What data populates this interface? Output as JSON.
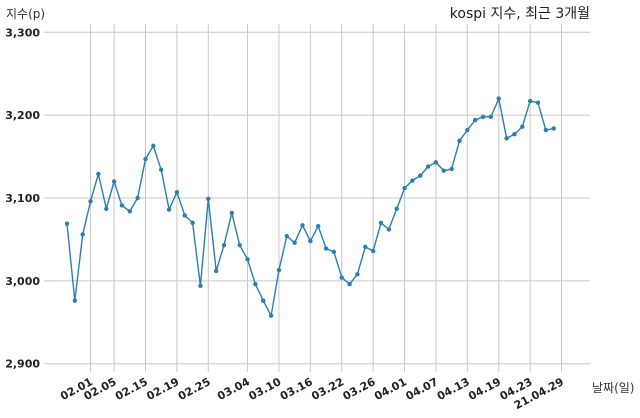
{
  "chart_data": {
    "type": "line",
    "title": "kospi 지수, 최근 3개월",
    "xlabel": "날짜(일)",
    "ylabel": "지수(p)",
    "ylim": [
      2890,
      3310
    ],
    "yticks": [
      2900,
      3000,
      3100,
      3200,
      3300
    ],
    "ytick_labels": [
      "2,900",
      "3,000",
      "3,100",
      "3,200",
      "3,300"
    ],
    "grid": true,
    "x_tick_labels": [
      "02.01",
      "02.05",
      "02.15",
      "02.19",
      "02.25",
      "03.04",
      "03.10",
      "03.16",
      "03.22",
      "03.26",
      "04.01",
      "04.07",
      "04.13",
      "04.19",
      "04.23",
      "21.04.29"
    ],
    "x_tick_index": [
      3,
      6,
      10,
      14,
      18,
      23,
      27,
      31,
      35,
      39,
      43,
      47,
      51,
      55,
      59,
      63
    ],
    "series": [
      {
        "values": [
          3069,
          2976,
          3056,
          3096,
          3129,
          3087,
          3120,
          3091,
          3084,
          3100,
          3147,
          3163,
          3134,
          3086,
          3107,
          3079,
          3070,
          2994,
          3099,
          3012,
          3043,
          3082,
          3043,
          3026,
          2996,
          2976,
          2958,
          3013,
          3054,
          3046,
          3067,
          3048,
          3066,
          3039,
          3035,
          3004,
          2996,
          3008,
          3041,
          3036,
          3070,
          3062,
          3087,
          3112,
          3121,
          3127,
          3138,
          3143,
          3133,
          3135,
          3169,
          3182,
          3194,
          3198,
          3198,
          3220,
          3172,
          3177,
          3186,
          3217,
          3215,
          3182,
          3184
        ]
      }
    ]
  }
}
